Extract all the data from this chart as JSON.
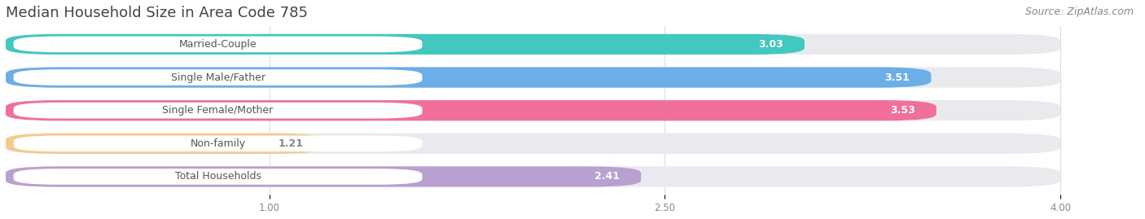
{
  "title": "Median Household Size in Area Code 785",
  "source": "Source: ZipAtlas.com",
  "categories": [
    "Married-Couple",
    "Single Male/Father",
    "Single Female/Mother",
    "Non-family",
    "Total Households"
  ],
  "values": [
    3.03,
    3.51,
    3.53,
    1.21,
    2.41
  ],
  "bar_colors": [
    "#42C8BE",
    "#6BAEE8",
    "#F0709A",
    "#F5C990",
    "#B8A0D0"
  ],
  "bar_background": "#EAEAEE",
  "xlim": [
    0,
    4.3
  ],
  "xmin": 0,
  "xmax": 4.0,
  "xticks": [
    1.0,
    2.5,
    4.0
  ],
  "title_fontsize": 13,
  "label_fontsize": 9,
  "value_fontsize": 9,
  "source_fontsize": 9,
  "background_color": "#FFFFFF",
  "value_colors_white": [
    true,
    true,
    true,
    false,
    true
  ]
}
